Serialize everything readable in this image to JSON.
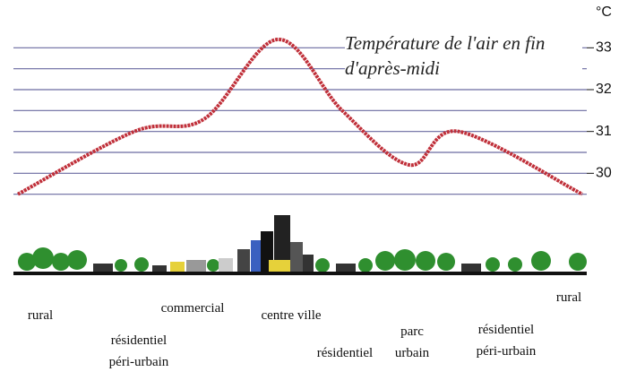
{
  "chart_data": {
    "type": "line",
    "title": "Température de l'air en fin d'après-midi",
    "y_unit": "°C",
    "categories": [
      "rural",
      "résidentiel péri-urbain",
      "commercial",
      "centre ville",
      "résidentiel",
      "parc urbain",
      "résidentiel péri-urbain",
      "rural"
    ],
    "series": [
      {
        "name": "Température de l'air",
        "color": "#c0303a",
        "values": [
          29.5,
          31.0,
          31.3,
          33.2,
          31.5,
          30.2,
          31.0,
          29.5
        ]
      }
    ],
    "ylim": [
      29.3,
      33.5
    ],
    "yticks": [
      30,
      31,
      32,
      33
    ],
    "minor_yticks": [
      29.5,
      30.5,
      31.5,
      32.5
    ],
    "grid": true
  }
}
